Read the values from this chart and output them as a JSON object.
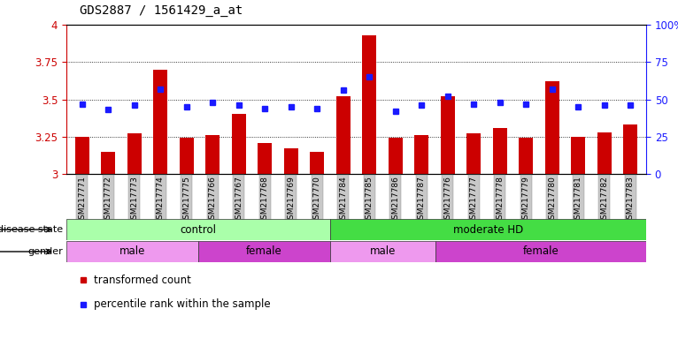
{
  "title": "GDS2887 / 1561429_a_at",
  "samples": [
    "GSM217771",
    "GSM217772",
    "GSM217773",
    "GSM217774",
    "GSM217775",
    "GSM217766",
    "GSM217767",
    "GSM217768",
    "GSM217769",
    "GSM217770",
    "GSM217784",
    "GSM217785",
    "GSM217786",
    "GSM217787",
    "GSM217776",
    "GSM217777",
    "GSM217778",
    "GSM217779",
    "GSM217780",
    "GSM217781",
    "GSM217782",
    "GSM217783"
  ],
  "bar_values": [
    3.25,
    3.15,
    3.27,
    3.7,
    3.24,
    3.26,
    3.4,
    3.21,
    3.17,
    3.15,
    3.52,
    3.93,
    3.24,
    3.26,
    3.52,
    3.27,
    3.31,
    3.24,
    3.62,
    3.25,
    3.28,
    3.33
  ],
  "dot_values": [
    3.47,
    3.43,
    3.46,
    3.57,
    3.45,
    3.48,
    3.46,
    3.44,
    3.45,
    3.44,
    3.56,
    3.65,
    3.42,
    3.46,
    3.52,
    3.47,
    3.48,
    3.47,
    3.57,
    3.45,
    3.46,
    3.46
  ],
  "ylim": [
    3.0,
    4.0
  ],
  "yticks": [
    3.0,
    3.25,
    3.5,
    3.75,
    4.0
  ],
  "ytick_labels": [
    "3",
    "3.25",
    "3.5",
    "3.75",
    "4"
  ],
  "right_ytick_labels": [
    "0",
    "25",
    "50",
    "75",
    "100%"
  ],
  "bar_color": "#cc0000",
  "dot_color": "#1a1aff",
  "bg_color": "#ffffff",
  "tick_bg": "#c8c8c8",
  "disease_state_groups": [
    {
      "label": "control",
      "start": 0,
      "end": 10,
      "color": "#aaffaa"
    },
    {
      "label": "moderate HD",
      "start": 10,
      "end": 22,
      "color": "#44dd44"
    }
  ],
  "gender_groups": [
    {
      "label": "male",
      "start": 0,
      "end": 5,
      "color": "#ee99ee"
    },
    {
      "label": "female",
      "start": 5,
      "end": 10,
      "color": "#cc44cc"
    },
    {
      "label": "male",
      "start": 10,
      "end": 14,
      "color": "#ee99ee"
    },
    {
      "label": "female",
      "start": 14,
      "end": 22,
      "color": "#cc44cc"
    }
  ],
  "legend_items": [
    {
      "label": "transformed count",
      "color": "#cc0000"
    },
    {
      "label": "percentile rank within the sample",
      "color": "#1a1aff"
    }
  ]
}
